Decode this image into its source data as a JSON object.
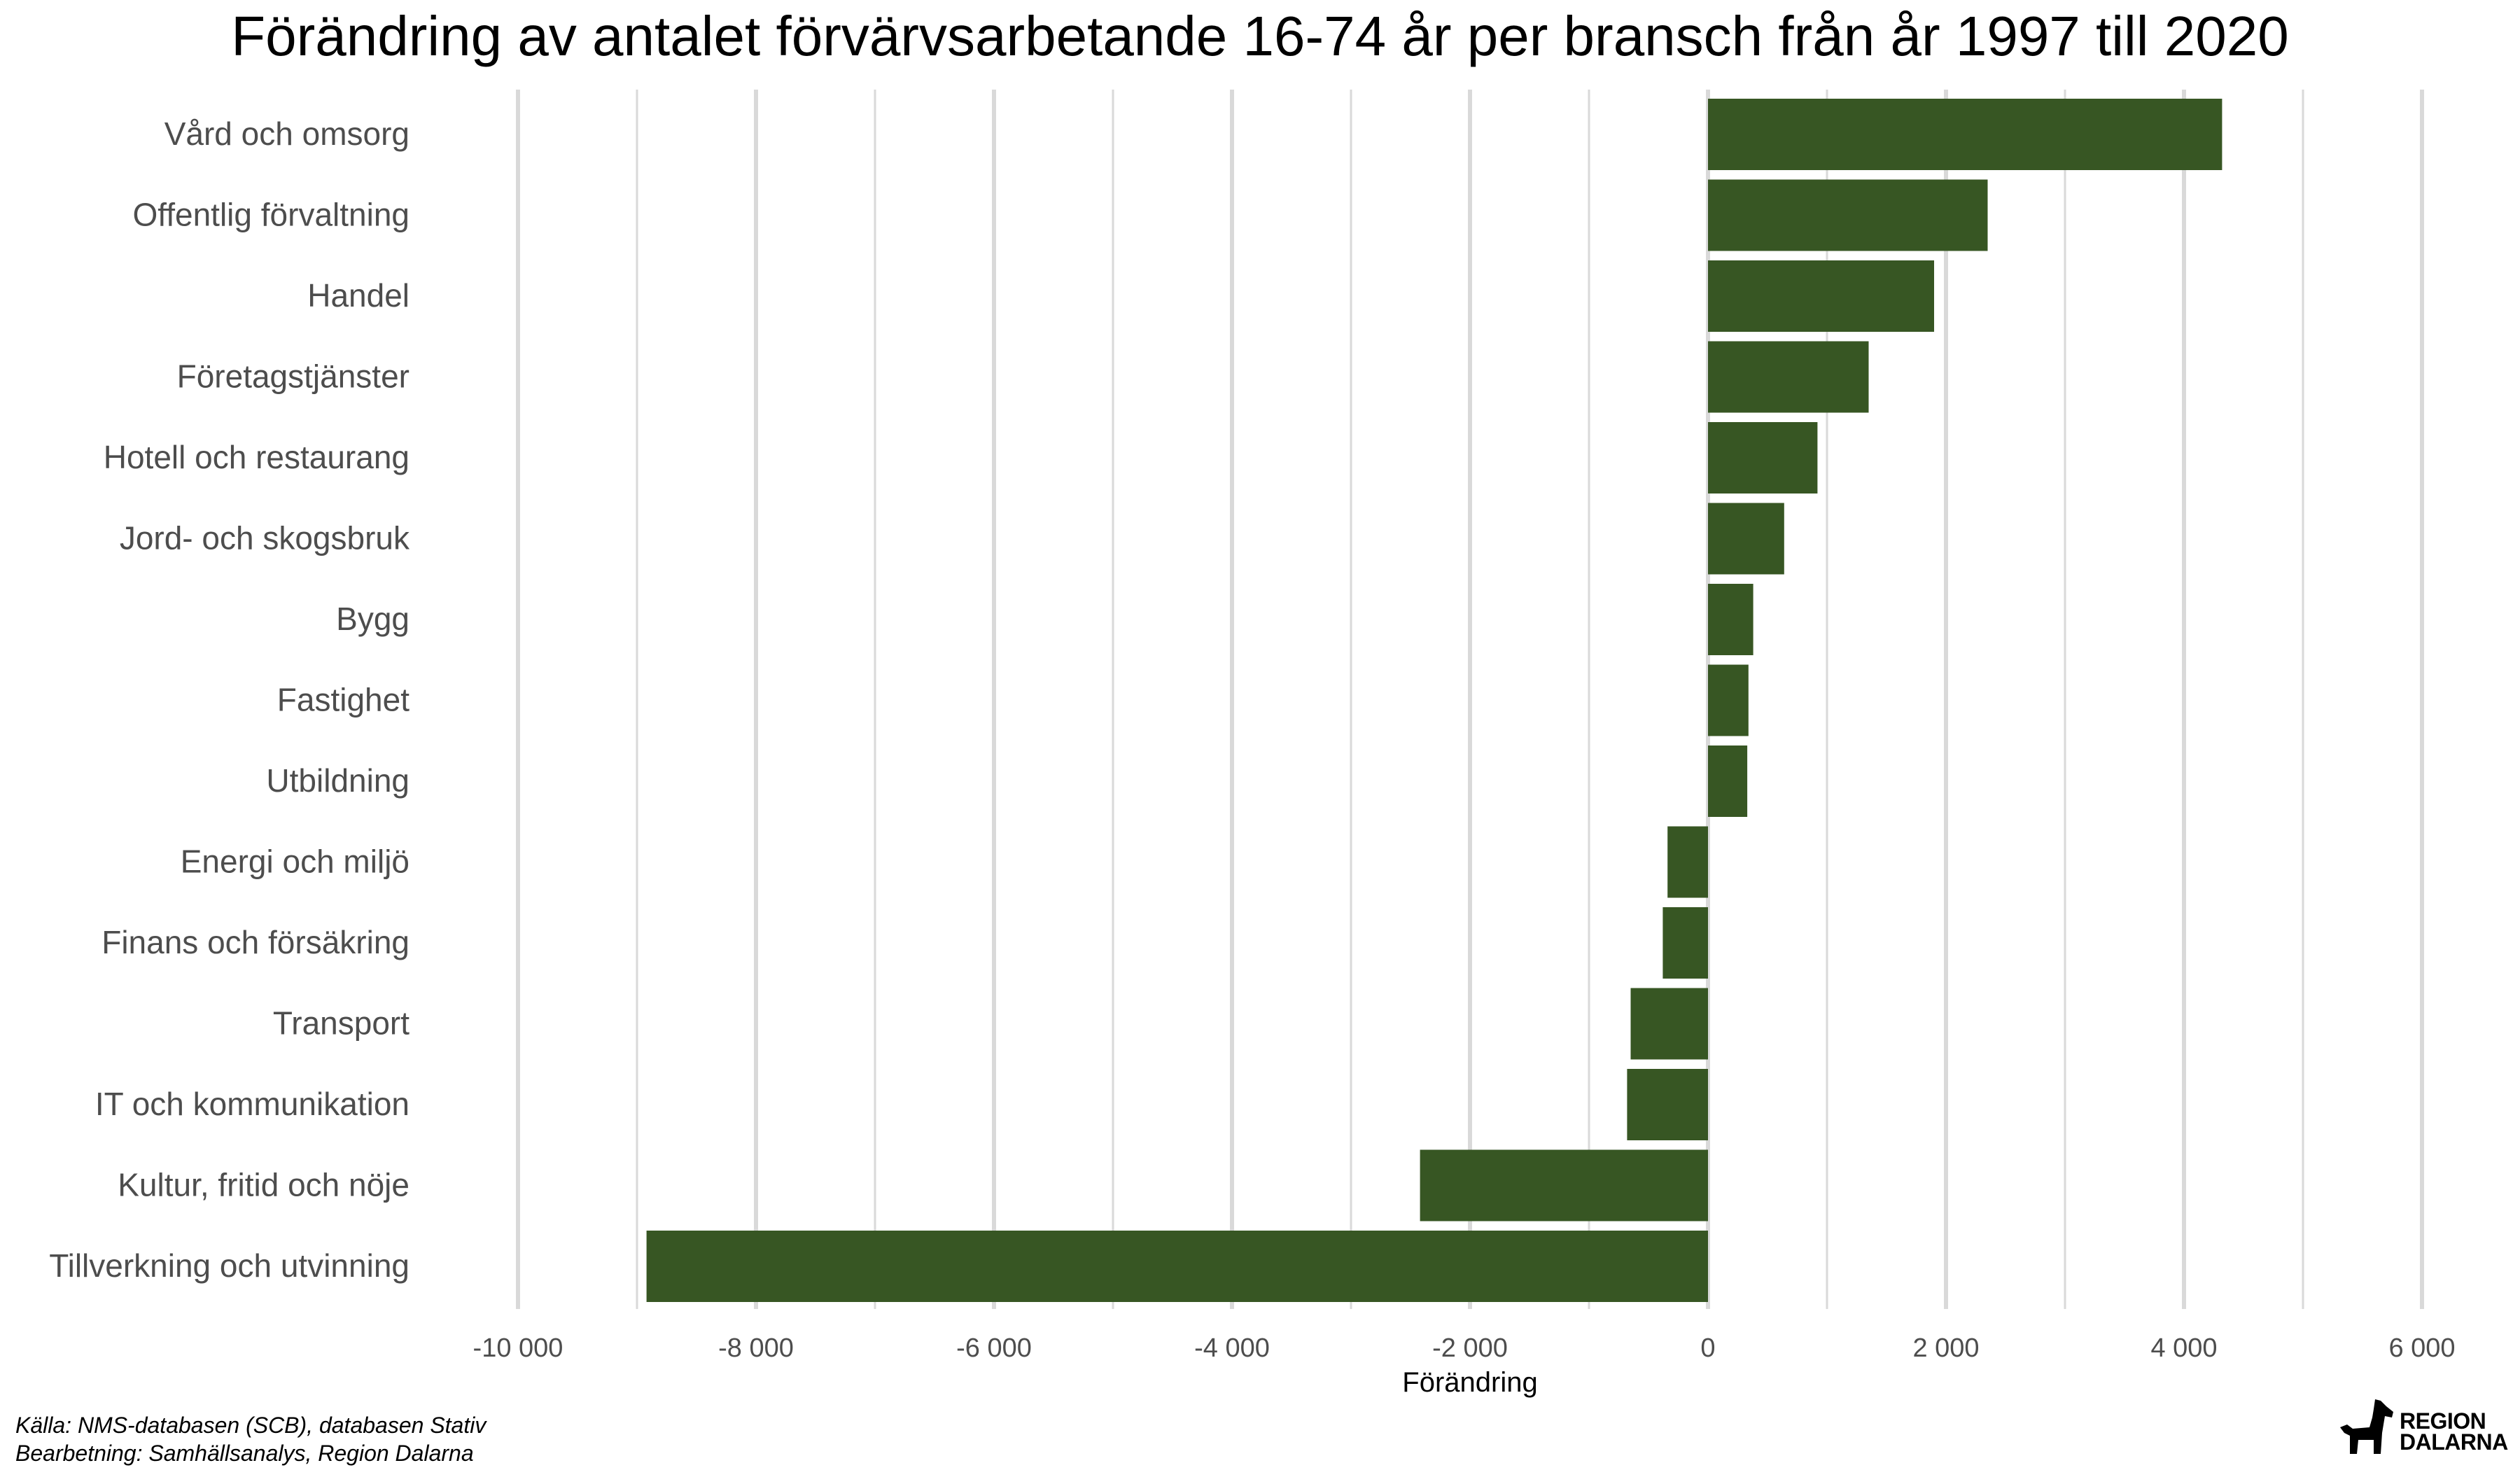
{
  "chart_data": {
    "type": "bar",
    "orientation": "horizontal",
    "title": "Förändring av antalet förvärvsarbetande 16-74 år per bransch från år 1997 till 2020",
    "xlabel": "Förändring",
    "ylabel": "",
    "xlim": [
      -10000,
      6000
    ],
    "xticks": [
      -10000,
      -8000,
      -6000,
      -4000,
      -2000,
      0,
      2000,
      4000,
      6000
    ],
    "xtick_labels": [
      "-10 000",
      "-8 000",
      "-6 000",
      "-4 000",
      "-2 000",
      "0",
      "2 000",
      "4 000",
      "6 000"
    ],
    "grid": true,
    "bar_color": "#375623",
    "categories": [
      "Vård och omsorg",
      "Offentlig förvaltning",
      "Handel",
      "Företagstjänster",
      "Hotell och restaurang",
      "Jord- och skogsbruk",
      "Bygg",
      "Fastighet",
      "Utbildning",
      "Energi och miljö",
      "Finans och försäkring",
      "Transport",
      "IT och kommunikation",
      "Kultur, fritid och nöje",
      "Tillverkning och utvinning"
    ],
    "values": [
      4320,
      2350,
      1900,
      1350,
      920,
      640,
      380,
      340,
      330,
      -340,
      -380,
      -650,
      -680,
      -2420,
      -8920
    ]
  },
  "footnotes": {
    "source": "Källa: NMS-databasen (SCB), databasen Stativ",
    "processing": "Bearbetning: Samhällsanalys, Region Dalarna"
  },
  "logo": {
    "line1": "REGION",
    "line2": "DALARNA",
    "icon": "dala-horse-icon"
  }
}
